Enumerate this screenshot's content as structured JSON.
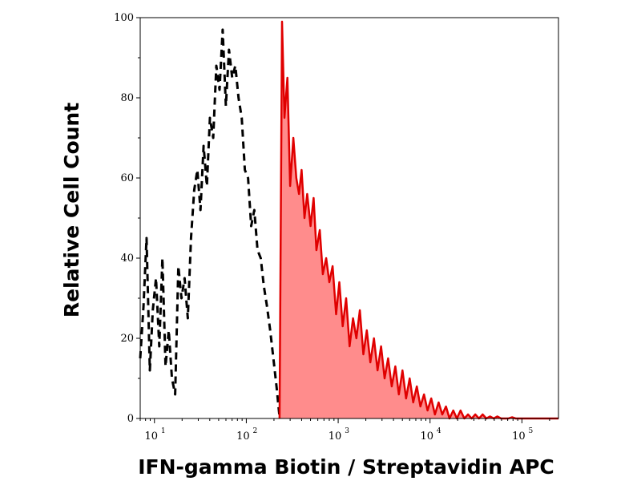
{
  "chart_data": {
    "type": "area",
    "xlabel": "IFN-gamma Biotin / Streptavidin APC",
    "ylabel": "Relative Cell Count",
    "x_scale": "log",
    "xlim": [
      7,
      250000
    ],
    "ylim": [
      0,
      100
    ],
    "x_ticks": [
      {
        "base": "10",
        "exp": "1",
        "value": 10
      },
      {
        "base": "10",
        "exp": "2",
        "value": 100
      },
      {
        "base": "10",
        "exp": "3",
        "value": 1000
      },
      {
        "base": "10",
        "exp": "4",
        "value": 10000
      },
      {
        "base": "10",
        "exp": "5",
        "value": 100000
      }
    ],
    "y_ticks": [
      "0",
      "20",
      "40",
      "60",
      "80",
      "100"
    ],
    "grid": false,
    "legend": "none",
    "series": [
      {
        "style": "dashed",
        "color": "#000000",
        "fill": "none",
        "x": [
          7,
          7.6,
          8.2,
          8.9,
          9.6,
          10.4,
          11.3,
          12.2,
          13.2,
          14.3,
          15.5,
          16.8,
          18.2,
          19.7,
          21.3,
          23.1,
          25,
          27.1,
          29.3,
          31.7,
          34.3,
          37.2,
          40.2,
          43.6,
          47.2,
          51.1,
          55.3,
          59.9,
          64.8,
          70.2,
          76,
          82.3,
          89.1,
          96.4,
          104.4,
          113,
          122.3,
          132.4,
          143.4,
          155.2,
          168,
          181.9,
          196.9,
          213.2,
          230.8
        ],
        "y": [
          15,
          28,
          45,
          12,
          27,
          35,
          18,
          40,
          13,
          22,
          10,
          6,
          38,
          30,
          35,
          25,
          45,
          57,
          62,
          52,
          68,
          58,
          75,
          70,
          88,
          82,
          97,
          78,
          92,
          85,
          88,
          80,
          75,
          62,
          60,
          48,
          52,
          42,
          40,
          33,
          28,
          22,
          15,
          8,
          0
        ]
      },
      {
        "style": "solid-filled",
        "color": "#e00000",
        "fill": "#ff8c8c",
        "x": [
          230,
          245,
          260,
          280,
          300,
          325,
          350,
          375,
          400,
          430,
          460,
          500,
          540,
          580,
          630,
          680,
          740,
          800,
          870,
          950,
          1030,
          1120,
          1220,
          1330,
          1450,
          1580,
          1720,
          1880,
          2050,
          2240,
          2450,
          2680,
          2930,
          3200,
          3500,
          3830,
          4190,
          4580,
          5010,
          5480,
          6000,
          6560,
          7180,
          7860,
          8600,
          9400,
          10300,
          11300,
          12400,
          13600,
          14900,
          16300,
          17900,
          19600,
          21500,
          23600,
          25900,
          28400,
          31100,
          34100,
          37400,
          41000,
          45000,
          49300,
          54000,
          59200,
          64900,
          71200,
          78000,
          85600,
          93800,
          102900,
          112800,
          123700,
          135600,
          148700,
          163000,
          178700,
          196000,
          215000,
          250000
        ],
        "y": [
          0,
          99,
          75,
          85,
          58,
          70,
          60,
          56,
          62,
          50,
          56,
          48,
          55,
          42,
          47,
          36,
          40,
          34,
          38,
          26,
          34,
          23,
          30,
          18,
          25,
          20,
          27,
          16,
          22,
          14,
          20,
          12,
          18,
          10,
          15,
          8,
          13,
          6,
          12,
          5,
          10,
          4,
          8,
          3,
          6,
          2,
          5,
          1,
          4,
          1,
          3,
          0,
          2,
          0,
          2,
          0,
          1,
          0,
          1,
          0,
          1,
          0,
          0.5,
          0,
          0.5,
          0,
          0,
          0,
          0.3,
          0,
          0,
          0,
          0,
          0,
          0,
          0,
          0,
          0,
          0,
          0,
          0
        ]
      }
    ]
  }
}
